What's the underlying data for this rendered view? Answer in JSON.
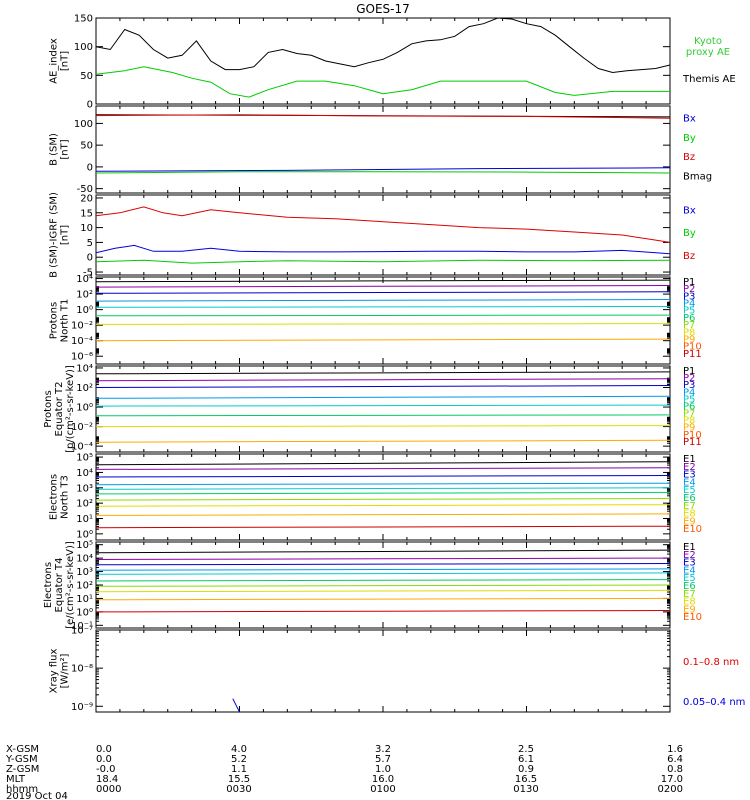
{
  "title": "GOES-17",
  "colors": {
    "black": "#000000",
    "red": "#dd0000",
    "green": "#00cc00",
    "blue": "#0000dd",
    "lightgreen": "#33cc33",
    "rainbow": [
      "#000000",
      "#8800aa",
      "#0000cc",
      "#0099ee",
      "#00cccc",
      "#00cc66",
      "#88dd00",
      "#dddd00",
      "#ffaa00",
      "#ff5500",
      "#cc0000"
    ]
  },
  "panels": [
    {
      "id": "ae",
      "ylabel": [
        "AE_index",
        "[nT]"
      ],
      "scale": "linear",
      "ylim": [
        0,
        150
      ],
      "ticks": [
        "0",
        "50",
        "100",
        "150"
      ],
      "tick_values": [
        0,
        50,
        100,
        150
      ],
      "legend": [
        "Kyoto",
        "proxy AE",
        "Themis AE"
      ]
    },
    {
      "id": "bsm",
      "ylabel": [
        "B (SM)",
        "[nT]"
      ],
      "scale": "linear",
      "ylim": [
        -60,
        140
      ],
      "ticks": [
        "-50",
        "0",
        "50",
        "100"
      ],
      "tick_values": [
        -50,
        0,
        50,
        100
      ],
      "legend": [
        "Bx",
        "By",
        "Bz",
        "Bmag"
      ]
    },
    {
      "id": "bmod",
      "ylabel": [
        "B (SM)-IGRF (SM)",
        "[nT]"
      ],
      "scale": "linear",
      "ylim": [
        -6,
        21
      ],
      "ticks": [
        "-5",
        "0",
        "5",
        "10",
        "15",
        "20"
      ],
      "tick_values": [
        -5,
        0,
        5,
        10,
        15,
        20
      ],
      "legend": [
        "Bx",
        "By",
        "Bz"
      ]
    },
    {
      "id": "pn",
      "ylabel": [
        "Protons",
        "North T1"
      ],
      "scale": "log",
      "ylim": [
        -7,
        4.2
      ],
      "ticks": [
        "10⁴",
        "10²",
        "10⁰",
        "10⁻²",
        "10⁻⁴",
        "10⁻⁶"
      ],
      "tick_values": [
        4,
        2,
        0,
        -2,
        -4,
        -6
      ],
      "legend": [
        "P1",
        "P2",
        "P3",
        "P4",
        "P5",
        "P6",
        "P7",
        "P8",
        "P9",
        "P10",
        "P11"
      ]
    },
    {
      "id": "pe",
      "ylabel": [
        "Protons",
        "Equator T2",
        "[p/(cm²-s-sr-keV)]"
      ],
      "scale": "log",
      "ylim": [
        -4.6,
        4.2
      ],
      "ticks": [
        "10⁴",
        "10²",
        "10⁰",
        "10⁻²",
        "10⁻⁴"
      ],
      "tick_values": [
        4,
        2,
        0,
        -2,
        -4
      ],
      "legend": [
        "P1",
        "P2",
        "P3",
        "P4",
        "P5",
        "P6",
        "P7",
        "P8",
        "P9",
        "P10",
        "P11"
      ]
    },
    {
      "id": "en",
      "ylabel": [
        "Electrons",
        "North T3"
      ],
      "scale": "log",
      "ylim": [
        -0.4,
        5.2
      ],
      "ticks": [
        "10⁵",
        "10⁴",
        "10³",
        "10²",
        "10¹",
        "10⁰"
      ],
      "tick_values": [
        5,
        4,
        3,
        2,
        1,
        0
      ],
      "legend": [
        "E1",
        "E2",
        "E3",
        "E4",
        "E5",
        "E6",
        "E7",
        "E8",
        "E9",
        "E10"
      ]
    },
    {
      "id": "ee",
      "ylabel": [
        "Electrons",
        "Equator T4",
        "[e/(cm²-s-sr-keV)]"
      ],
      "scale": "log",
      "ylim": [
        -1.2,
        5.2
      ],
      "ticks": [
        "10⁵",
        "10⁴",
        "10³",
        "10²",
        "10¹",
        "10⁰",
        "10⁻¹"
      ],
      "tick_values": [
        5,
        4,
        3,
        2,
        1,
        0,
        -1
      ],
      "legend": [
        "E1",
        "E2",
        "E3",
        "E4",
        "E5",
        "E6",
        "E7",
        "E8",
        "E9",
        "E10"
      ]
    },
    {
      "id": "xray",
      "ylabel": [
        "Xray flux",
        "[W/m²]"
      ],
      "scale": "log",
      "ylim": [
        -9.15,
        -7
      ],
      "ticks": [
        "10⁻⁷",
        "10⁻⁸",
        "10⁻⁹"
      ],
      "tick_values": [
        -7,
        -8,
        -9
      ],
      "legend": [
        "0.1–0.8 nm",
        "0.05–0.4 nm"
      ]
    }
  ],
  "footer": {
    "row_labels": [
      "X-GSM",
      "Y-GSM",
      "Z-GSM",
      "MLT",
      "hhmm",
      "2019 Oct 04"
    ],
    "columns": [
      [
        "0.0",
        "0.0",
        "-0.0",
        "18.4",
        "0000"
      ],
      [
        "4.0",
        "5.2",
        "1.1",
        "15.5",
        "0030"
      ],
      [
        "3.2",
        "5.7",
        "1.0",
        "16.0",
        "0100"
      ],
      [
        "2.5",
        "6.1",
        "0.9",
        "16.5",
        "0130"
      ],
      [
        "1.6",
        "6.4",
        "0.8",
        "17.0",
        "0200"
      ]
    ]
  },
  "chart_data": {
    "type": "line",
    "title": "GOES-17",
    "x_time_range": [
      "0000",
      "0200"
    ],
    "x_tick_labels": [
      "0000",
      "0030",
      "0100",
      "0130",
      "0200"
    ],
    "panels": [
      {
        "id": "ae",
        "series": [
          {
            "name": "Themis AE",
            "color": "#000000",
            "x": [
              0,
              3,
              6,
              9,
              12,
              15,
              18,
              21,
              24,
              27,
              30,
              33,
              36,
              39,
              42,
              45,
              48,
              51,
              54,
              57,
              60,
              63,
              66,
              69,
              72,
              75,
              78,
              81,
              84,
              87,
              90,
              93,
              96,
              99,
              102,
              105,
              108,
              111,
              114,
              117,
              120
            ],
            "y": [
              100,
              95,
              130,
              120,
              95,
              80,
              85,
              110,
              75,
              60,
              60,
              65,
              90,
              95,
              88,
              85,
              75,
              70,
              65,
              72,
              78,
              90,
              105,
              110,
              112,
              118,
              135,
              140,
              150,
              148,
              140,
              135,
              120,
              100,
              80,
              62,
              55,
              58,
              60,
              62,
              68
            ]
          },
          {
            "name": "Kyoto proxy AE",
            "color": "#00cc00",
            "x": [
              0,
              6,
              10,
              16,
              20,
              24,
              28,
              32,
              36,
              42,
              48,
              54,
              60,
              66,
              72,
              80,
              90,
              96,
              100,
              108,
              114,
              120
            ],
            "y": [
              52,
              58,
              65,
              55,
              45,
              38,
              18,
              12,
              25,
              40,
              40,
              32,
              18,
              25,
              40,
              40,
              40,
              20,
              15,
              22,
              22,
              22
            ]
          }
        ]
      },
      {
        "id": "bsm",
        "series": [
          {
            "name": "Bmag",
            "color": "#000000",
            "x": [
              0,
              120
            ],
            "y": [
              120,
              115
            ]
          },
          {
            "name": "Bz",
            "color": "#dd0000",
            "x": [
              0,
              30,
              60,
              90,
              120
            ],
            "y": [
              118,
              120,
              117,
              116,
              112
            ]
          },
          {
            "name": "Bx",
            "color": "#0000dd",
            "x": [
              0,
              40,
              80,
              120
            ],
            "y": [
              -10,
              -8,
              -4,
              -2
            ]
          },
          {
            "name": "By",
            "color": "#00cc00",
            "x": [
              0,
              30,
              60,
              90,
              120
            ],
            "y": [
              -14,
              -11,
              -11,
              -12,
              -14
            ]
          }
        ]
      },
      {
        "id": "bmod",
        "series": [
          {
            "name": "Bz",
            "color": "#dd0000",
            "x": [
              0,
              5,
              10,
              14,
              18,
              24,
              30,
              40,
              50,
              60,
              70,
              80,
              90,
              100,
              110,
              116,
              120
            ],
            "y": [
              14,
              15,
              17,
              15,
              14,
              16,
              15,
              13.5,
              13,
              12,
              11,
              10,
              9.5,
              8.5,
              7.5,
              6,
              5
            ]
          },
          {
            "name": "Bx",
            "color": "#0000dd",
            "x": [
              0,
              4,
              8,
              12,
              18,
              24,
              30,
              40,
              50,
              60,
              70,
              80,
              90,
              100,
              110,
              120
            ],
            "y": [
              1.5,
              3,
              4,
              2,
              2,
              3,
              2,
              1.8,
              1.8,
              1.9,
              2,
              2,
              1.8,
              1.8,
              2.3,
              1.2
            ]
          },
          {
            "name": "By",
            "color": "#00cc00",
            "x": [
              0,
              10,
              20,
              30,
              40,
              60,
              80,
              100,
              120
            ],
            "y": [
              -1.5,
              -1,
              -2,
              -1.5,
              -1.2,
              -1.5,
              -1,
              -1.2,
              -1
            ]
          }
        ]
      },
      {
        "id": "pn",
        "unit": "log10 flux",
        "series": [
          {
            "name": "P1",
            "color": "#000000",
            "x": [
              0,
              120
            ],
            "y": [
              3.6,
              3.8
            ]
          },
          {
            "name": "P2",
            "color": "#8800aa",
            "x": [
              0,
              120
            ],
            "y": [
              2.9,
              3.1
            ]
          },
          {
            "name": "P3",
            "color": "#0000cc",
            "x": [
              0,
              120
            ],
            "y": [
              2.1,
              2.3
            ]
          },
          {
            "name": "P4",
            "color": "#0099ee",
            "x": [
              0,
              120
            ],
            "y": [
              1.1,
              1.3
            ]
          },
          {
            "name": "P5",
            "color": "#00cccc",
            "x": [
              0,
              120
            ],
            "y": [
              0.3,
              0.4
            ]
          },
          {
            "name": "P6",
            "color": "#00cc66",
            "x": [
              0,
              120
            ],
            "y": [
              -0.8,
              -0.7
            ]
          },
          {
            "name": "P7",
            "color": "#dddd00",
            "x": [
              0,
              120
            ],
            "y": [
              -1.9,
              -1.8
            ]
          },
          {
            "name": "P9",
            "color": "#ffaa00",
            "x": [
              0,
              120
            ],
            "y": [
              -4.0,
              -3.8
            ]
          }
        ]
      },
      {
        "id": "pe",
        "unit": "log10 flux",
        "series": [
          {
            "name": "P1",
            "color": "#000000",
            "x": [
              0,
              120
            ],
            "y": [
              3.4,
              3.6
            ]
          },
          {
            "name": "P2",
            "color": "#8800aa",
            "x": [
              0,
              120
            ],
            "y": [
              2.7,
              2.9
            ]
          },
          {
            "name": "P3",
            "color": "#0000cc",
            "x": [
              0,
              120
            ],
            "y": [
              2.0,
              2.2
            ]
          },
          {
            "name": "P4",
            "color": "#0099ee",
            "x": [
              0,
              120
            ],
            "y": [
              0.9,
              1.1
            ]
          },
          {
            "name": "P5",
            "color": "#00cccc",
            "x": [
              0,
              120
            ],
            "y": [
              0.1,
              0.2
            ]
          },
          {
            "name": "P6",
            "color": "#00cc66",
            "x": [
              0,
              120
            ],
            "y": [
              -0.9,
              -0.8
            ]
          },
          {
            "name": "P7",
            "color": "#dddd00",
            "x": [
              0,
              120
            ],
            "y": [
              -2.0,
              -1.9
            ]
          },
          {
            "name": "P9",
            "color": "#ffaa00",
            "x": [
              0,
              120
            ],
            "y": [
              -3.6,
              -3.4
            ]
          }
        ]
      },
      {
        "id": "en",
        "unit": "log10 flux",
        "series": [
          {
            "name": "E1",
            "color": "#000000",
            "x": [
              0,
              120
            ],
            "y": [
              4.5,
              4.7
            ]
          },
          {
            "name": "E2",
            "color": "#8800aa",
            "x": [
              0,
              120
            ],
            "y": [
              4.2,
              4.3
            ]
          },
          {
            "name": "E3",
            "color": "#0000cc",
            "x": [
              0,
              120
            ],
            "y": [
              3.7,
              3.8
            ]
          },
          {
            "name": "E4",
            "color": "#0099ee",
            "x": [
              0,
              120
            ],
            "y": [
              3.2,
              3.3
            ]
          },
          {
            "name": "E5",
            "color": "#00cccc",
            "x": [
              0,
              120
            ],
            "y": [
              2.9,
              3.0
            ]
          },
          {
            "name": "E6",
            "color": "#00cc66",
            "x": [
              0,
              120
            ],
            "y": [
              2.6,
              2.7
            ]
          },
          {
            "name": "E7",
            "color": "#88dd00",
            "x": [
              0,
              120
            ],
            "y": [
              2.2,
              2.3
            ]
          },
          {
            "name": "E8",
            "color": "#dddd00",
            "x": [
              0,
              120
            ],
            "y": [
              1.8,
              1.9
            ]
          },
          {
            "name": "E9",
            "color": "#ffaa00",
            "x": [
              0,
              120
            ],
            "y": [
              1.2,
              1.3
            ]
          },
          {
            "name": "E10",
            "color": "#cc0000",
            "x": [
              0,
              120
            ],
            "y": [
              0.4,
              0.5
            ]
          }
        ]
      },
      {
        "id": "ee",
        "unit": "log10 flux",
        "series": [
          {
            "name": "E1",
            "color": "#000000",
            "x": [
              0,
              120
            ],
            "y": [
              4.4,
              4.6
            ]
          },
          {
            "name": "E2",
            "color": "#8800aa",
            "x": [
              0,
              120
            ],
            "y": [
              3.9,
              4.0
            ]
          },
          {
            "name": "E3",
            "color": "#0000cc",
            "x": [
              0,
              120
            ],
            "y": [
              3.5,
              3.6
            ]
          },
          {
            "name": "E4",
            "color": "#0099ee",
            "x": [
              0,
              120
            ],
            "y": [
              3.1,
              3.2
            ]
          },
          {
            "name": "E5",
            "color": "#00cccc",
            "x": [
              0,
              120
            ],
            "y": [
              2.8,
              2.9
            ]
          },
          {
            "name": "E6",
            "color": "#00cc66",
            "x": [
              0,
              120
            ],
            "y": [
              2.3,
              2.4
            ]
          },
          {
            "name": "E7",
            "color": "#88dd00",
            "x": [
              0,
              120
            ],
            "y": [
              1.9,
              2.0
            ]
          },
          {
            "name": "E8",
            "color": "#dddd00",
            "x": [
              0,
              120
            ],
            "y": [
              1.5,
              1.6
            ]
          },
          {
            "name": "E9",
            "color": "#ffaa00",
            "x": [
              0,
              120
            ],
            "y": [
              0.9,
              1.0
            ]
          },
          {
            "name": "E10",
            "color": "#cc0000",
            "x": [
              0,
              120
            ],
            "y": [
              0.0,
              0.1
            ]
          }
        ]
      },
      {
        "id": "xray",
        "series": [
          {
            "name": "0.05–0.4 nm",
            "color": "#0000dd",
            "x": [
              28.6,
              30
            ],
            "y": [
              -8.8,
              -9.15
            ]
          }
        ]
      }
    ]
  }
}
